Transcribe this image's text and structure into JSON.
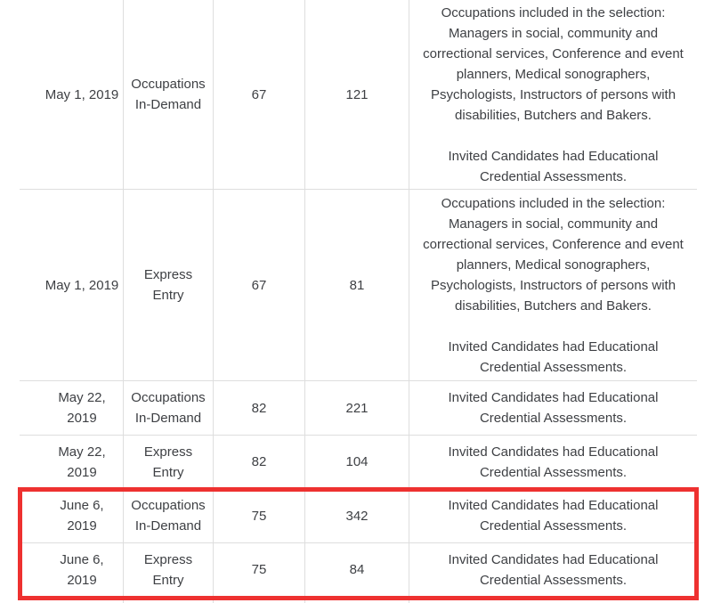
{
  "colors": {
    "text": "#3e4044",
    "grid_line": "#dedede",
    "highlight_red": "#ee3130",
    "background": "#ffffff"
  },
  "table": {
    "rows": [
      {
        "date": "May 1, 2019",
        "stream": "Occupations\nIn-Demand",
        "score": "67",
        "invitations": "121",
        "description": "Occupations included in the selection:\nManagers in social, community and\ncorrectional services, Conference and event\nplanners, Medical sonographers,\nPsychologists, Instructors of persons with\ndisabilities, Butchers and Bakers.\n\nInvited Candidates had Educational\nCredential Assessments."
      },
      {
        "date": "May 1, 2019",
        "stream": "Express\nEntry",
        "score": "67",
        "invitations": "81",
        "description": "Occupations included in the selection:\nManagers in social, community and\ncorrectional services, Conference and event\nplanners, Medical sonographers,\nPsychologists, Instructors of persons with\ndisabilities, Butchers and Bakers.\n\nInvited Candidates had Educational\nCredential Assessments."
      },
      {
        "date": "May 22,\n2019",
        "stream": "Occupations\nIn-Demand",
        "score": "82",
        "invitations": "221",
        "description": "Invited Candidates had Educational\nCredential Assessments."
      },
      {
        "date": "May 22,\n2019",
        "stream": "Express\nEntry",
        "score": "82",
        "invitations": "104",
        "description": "Invited Candidates had Educational\nCredential Assessments."
      },
      {
        "date": "June 6,\n2019",
        "stream": "Occupations\nIn-Demand",
        "score": "75",
        "invitations": "342",
        "description": "Invited Candidates had Educational\nCredential Assessments."
      },
      {
        "date": "June 6,\n2019",
        "stream": "Express\nEntry",
        "score": "75",
        "invitations": "84",
        "description": "Invited Candidates had Educational\nCredential Assessments."
      }
    ]
  },
  "annotation": {
    "highlighted_rows": "June 6, 2019 — Occupations In-Demand and Express Entry"
  }
}
